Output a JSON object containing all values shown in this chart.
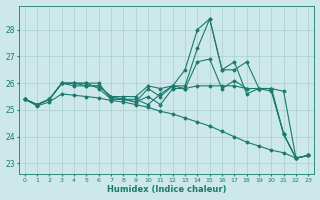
{
  "xlabel": "Humidex (Indice chaleur)",
  "bg_color": "#cce8e8",
  "grid_color": "#aacfcf",
  "line_color": "#1a7a6e",
  "xlim": [
    -0.5,
    23.5
  ],
  "ylim": [
    22.6,
    28.9
  ],
  "yticks": [
    23,
    24,
    25,
    26,
    27,
    28
  ],
  "xticks": [
    0,
    1,
    2,
    3,
    4,
    5,
    6,
    7,
    8,
    9,
    10,
    11,
    12,
    13,
    14,
    15,
    16,
    17,
    18,
    19,
    20,
    21,
    22,
    23
  ],
  "series": [
    [
      25.4,
      25.2,
      25.4,
      26.0,
      26.0,
      25.9,
      25.9,
      25.5,
      25.5,
      25.5,
      25.9,
      25.8,
      25.9,
      25.8,
      25.9,
      25.9,
      25.9,
      25.9,
      25.8,
      25.8,
      25.8,
      25.7,
      23.2,
      23.3
    ],
    [
      25.4,
      25.2,
      25.4,
      26.0,
      26.0,
      26.0,
      26.0,
      25.4,
      25.4,
      25.4,
      25.2,
      25.6,
      25.9,
      26.5,
      28.0,
      28.4,
      26.5,
      26.5,
      26.8,
      25.8,
      25.8,
      24.1,
      23.2,
      23.3
    ],
    [
      25.4,
      25.2,
      25.4,
      26.0,
      26.0,
      26.0,
      25.8,
      25.4,
      25.4,
      25.3,
      25.5,
      25.2,
      25.8,
      25.8,
      26.8,
      26.9,
      25.8,
      26.1,
      25.8,
      25.8,
      25.8,
      24.1,
      23.2,
      23.3
    ],
    [
      25.4,
      25.2,
      25.4,
      26.0,
      25.9,
      25.9,
      25.9,
      25.5,
      25.4,
      25.3,
      25.8,
      25.5,
      25.9,
      25.9,
      27.3,
      28.4,
      26.5,
      26.8,
      25.6,
      25.8,
      25.7,
      24.1,
      23.2,
      23.3
    ],
    [
      25.4,
      25.15,
      25.3,
      25.6,
      25.55,
      25.5,
      25.45,
      25.35,
      25.3,
      25.2,
      25.1,
      24.95,
      24.85,
      24.7,
      24.55,
      24.4,
      24.2,
      24.0,
      23.8,
      23.65,
      23.5,
      23.4,
      23.2,
      23.3
    ]
  ]
}
